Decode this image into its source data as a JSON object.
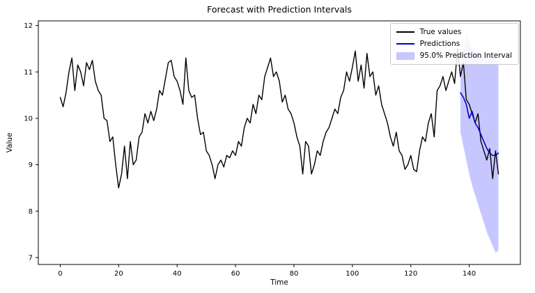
{
  "figure": {
    "title": "Forecast with Prediction Intervals",
    "xlabel": "Time",
    "ylabel": "Value"
  },
  "chart_data": {
    "type": "line",
    "title": "Forecast with Prediction Intervals",
    "xlabel": "Time",
    "ylabel": "Value",
    "xlim": [
      -7.5,
      157.5
    ],
    "ylim": [
      6.85,
      12.1
    ],
    "x_ticks": [
      0,
      20,
      40,
      60,
      80,
      100,
      120,
      140
    ],
    "y_ticks": [
      7,
      8,
      9,
      10,
      11,
      12
    ],
    "grid": false,
    "legend_position": "upper right",
    "series": [
      {
        "name": "True values",
        "color": "#000000",
        "line_width": 1.4,
        "x_start": 0,
        "x_step": 1,
        "values": [
          10.45,
          10.25,
          10.55,
          11.0,
          11.3,
          10.6,
          11.15,
          11.0,
          10.7,
          11.2,
          11.05,
          11.25,
          10.8,
          10.6,
          10.5,
          10.0,
          9.95,
          9.5,
          9.6,
          9.0,
          8.5,
          8.8,
          9.4,
          8.7,
          9.5,
          9.0,
          9.1,
          9.6,
          9.7,
          10.1,
          9.9,
          10.15,
          9.95,
          10.2,
          10.6,
          10.5,
          10.85,
          11.2,
          11.25,
          10.9,
          10.8,
          10.6,
          10.3,
          11.3,
          10.6,
          10.45,
          10.5,
          10.0,
          9.65,
          9.7,
          9.3,
          9.2,
          9.0,
          8.7,
          9.0,
          9.1,
          8.95,
          9.2,
          9.15,
          9.3,
          9.2,
          9.5,
          9.4,
          9.8,
          10.0,
          9.9,
          10.3,
          10.1,
          10.5,
          10.4,
          10.9,
          11.1,
          11.3,
          10.9,
          11.0,
          10.8,
          10.35,
          10.5,
          10.2,
          10.1,
          9.9,
          9.6,
          9.4,
          8.8,
          9.5,
          9.4,
          8.8,
          9.0,
          9.3,
          9.2,
          9.5,
          9.7,
          9.8,
          10.0,
          10.2,
          10.1,
          10.45,
          10.6,
          11.0,
          10.8,
          11.1,
          11.45,
          10.8,
          11.15,
          10.65,
          11.4,
          10.9,
          11.0,
          10.5,
          10.7,
          10.3,
          10.1,
          9.9,
          9.6,
          9.4,
          9.7,
          9.3,
          9.2,
          8.9,
          9.0,
          9.2,
          8.9,
          8.85,
          9.3,
          9.6,
          9.5,
          9.9,
          10.1,
          9.6,
          10.6,
          10.7,
          10.9,
          10.6,
          10.8,
          11.0,
          10.75,
          11.5,
          10.9,
          11.2,
          10.4,
          10.3,
          10.1,
          9.9,
          10.1,
          9.5,
          9.3,
          9.1,
          9.35,
          8.7,
          9.3,
          8.8
        ]
      },
      {
        "name": "Predictions",
        "color": "#0000cc",
        "line_width": 1.6,
        "x_start": 137,
        "x_step": 1,
        "values": [
          10.55,
          10.45,
          10.3,
          10.0,
          10.15,
          9.9,
          9.8,
          9.65,
          9.5,
          9.35,
          9.25,
          9.2,
          9.2,
          9.25
        ]
      }
    ],
    "interval": {
      "name": "95.0% Prediction Interval",
      "fill_color": "#0000ff",
      "fill_opacity": 0.22,
      "x_start": 137,
      "upper": [
        11.1,
        11.5,
        11.8,
        11.65,
        11.5,
        11.45,
        11.4,
        11.35,
        11.3,
        11.25,
        11.3,
        11.25,
        11.3,
        11.25
      ],
      "lower": [
        9.7,
        9.4,
        9.1,
        8.8,
        8.55,
        8.35,
        8.15,
        7.95,
        7.75,
        7.55,
        7.4,
        7.25,
        7.1,
        7.15
      ]
    }
  }
}
